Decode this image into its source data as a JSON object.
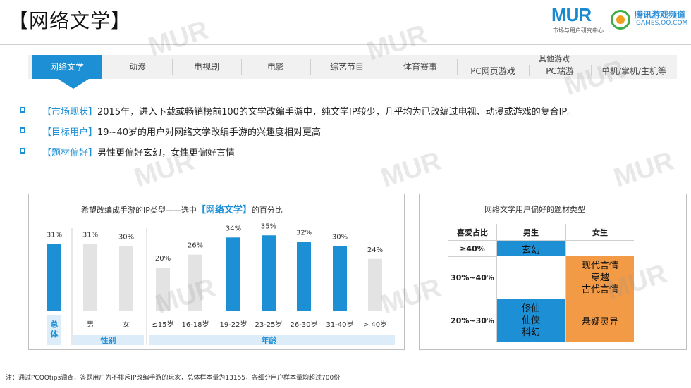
{
  "header": {
    "title": "【网络文学】",
    "logo_mur": "MUR",
    "logo_mur_sub": "市场与用户研究中心",
    "logo_tencent_name": "腾讯游戏频道",
    "logo_tencent_url": "GAMES.QQ.COM"
  },
  "tabs": [
    {
      "label": "网络文学",
      "active": true
    },
    {
      "label": "动漫"
    },
    {
      "label": "电视剧"
    },
    {
      "label": "电影"
    },
    {
      "label": "综艺节目"
    },
    {
      "label": "体育赛事"
    },
    {
      "label": "PC网页游戏"
    },
    {
      "label": "PC端游"
    },
    {
      "label": "单机/掌机/主机等"
    }
  ],
  "tabs_group_label": "其他游戏",
  "bullets": [
    {
      "tag": "【市场现状】",
      "text": "2015年，进入下载或畅销榜前100的文学改编手游中，纯文学IP较少，几乎均为已改编过电视、动漫或游戏的复合IP。"
    },
    {
      "tag": "【目标用户】",
      "text": "19~40岁的用户对网络文学改编手游的兴趣度相对更高"
    },
    {
      "tag": "【题材偏好】",
      "text": "男性更偏好玄幻，女性更偏好言情"
    }
  ],
  "chart_data": {
    "type": "bar",
    "title_prefix": "希望改编成手游的IP类型——选中",
    "title_highlight": "【网络文学】",
    "title_suffix": "的百分比",
    "categories": [
      "总体",
      "男",
      "女",
      "≤15岁",
      "16-18岁",
      "19-22岁",
      "23-25岁",
      "26-30岁",
      "31-40岁",
      "> 40岁"
    ],
    "values": [
      31,
      31,
      30,
      20,
      26,
      34,
      35,
      32,
      30,
      24
    ],
    "value_labels": [
      "31%",
      "31%",
      "30%",
      "20%",
      "26%",
      "34%",
      "35%",
      "32%",
      "30%",
      "24%"
    ],
    "highlight": [
      true,
      false,
      false,
      false,
      false,
      true,
      true,
      true,
      true,
      false
    ],
    "groups": [
      {
        "label": "性别",
        "start": 1,
        "end": 2
      },
      {
        "label": "年龄",
        "start": 3,
        "end": 9
      }
    ],
    "ylim": [
      0,
      40
    ],
    "colors": {
      "highlight": "#1d8fd5",
      "normal": "#e3e3e3",
      "group_bg": "#dcecf8"
    }
  },
  "pref_table": {
    "title": "网络文学用户偏好的题材类型",
    "headers": [
      "喜爱占比",
      "男生",
      "女生"
    ],
    "rows": [
      {
        "label": "≥40%",
        "male": [
          "玄幻"
        ],
        "female": []
      },
      {
        "label": "30%~40%",
        "male": [],
        "female": [
          "现代言情",
          "穿越",
          "古代言情"
        ]
      },
      {
        "label": "20%~30%",
        "male": [
          "修仙",
          "仙侠",
          "科幻"
        ],
        "female": [
          "悬疑灵异"
        ]
      }
    ],
    "colors": {
      "male": "#1d8fd5",
      "female": "#f39a46"
    }
  },
  "footnote": "注：通过PCQQtips调查，答题用户为不排斥IP改编手游的玩家，总体样本量为13155，各细分用户样本量均超过700份"
}
